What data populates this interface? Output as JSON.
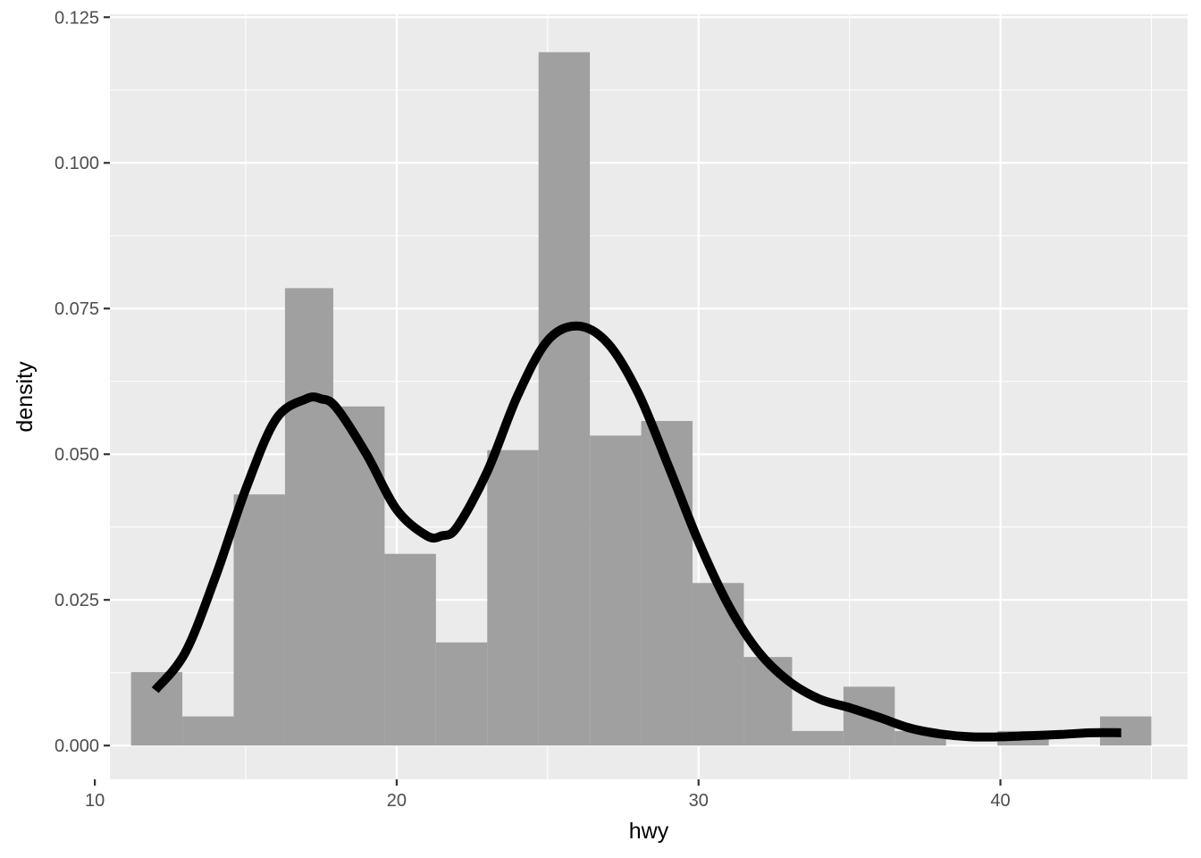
{
  "chart_data": {
    "type": "bar",
    "subtype": "histogram-with-density",
    "xlabel": "hwy",
    "ylabel": "density",
    "xlim": [
      10.5,
      46.2
    ],
    "ylim": [
      -0.0058,
      0.1255
    ],
    "x_ticks": [
      10,
      20,
      30,
      40
    ],
    "y_ticks": [
      0.0,
      0.025,
      0.05,
      0.075,
      0.1,
      0.125
    ],
    "y_tick_labels": [
      "0.000",
      "0.025",
      "0.050",
      "0.075",
      "0.100",
      "0.125"
    ],
    "grid": true,
    "histogram": {
      "fill_color": "#a0a0a0",
      "bins": [
        {
          "x0": 11.2,
          "x1": 12.9,
          "y": 0.0126
        },
        {
          "x0": 12.9,
          "x1": 14.6,
          "y": 0.005
        },
        {
          "x0": 14.6,
          "x1": 16.3,
          "y": 0.0431
        },
        {
          "x0": 16.3,
          "x1": 17.9,
          "y": 0.0785
        },
        {
          "x0": 17.9,
          "x1": 19.6,
          "y": 0.0582
        },
        {
          "x0": 19.6,
          "x1": 21.3,
          "y": 0.0329
        },
        {
          "x0": 21.3,
          "x1": 23.0,
          "y": 0.0177
        },
        {
          "x0": 23.0,
          "x1": 24.7,
          "y": 0.0507
        },
        {
          "x0": 24.7,
          "x1": 26.4,
          "y": 0.119
        },
        {
          "x0": 26.4,
          "x1": 28.1,
          "y": 0.0532
        },
        {
          "x0": 28.1,
          "x1": 29.8,
          "y": 0.0557
        },
        {
          "x0": 29.8,
          "x1": 31.5,
          "y": 0.0279
        },
        {
          "x0": 31.5,
          "x1": 33.1,
          "y": 0.0152
        },
        {
          "x0": 33.1,
          "x1": 34.8,
          "y": 0.0025
        },
        {
          "x0": 34.8,
          "x1": 36.5,
          "y": 0.0101
        },
        {
          "x0": 36.5,
          "x1": 38.2,
          "y": 0.0025
        },
        {
          "x0": 38.2,
          "x1": 39.9,
          "y": 0.0
        },
        {
          "x0": 39.9,
          "x1": 41.6,
          "y": 0.0025
        },
        {
          "x0": 41.6,
          "x1": 43.3,
          "y": 0.0
        },
        {
          "x0": 43.3,
          "x1": 45.0,
          "y": 0.005
        }
      ]
    },
    "density_curve": {
      "color": "#000000",
      "x": [
        12.0,
        13.0,
        14.0,
        15.0,
        16.0,
        17.0,
        17.5,
        18.0,
        19.0,
        20.0,
        21.0,
        21.5,
        22.0,
        23.0,
        24.0,
        25.0,
        26.0,
        27.0,
        28.0,
        29.0,
        30.0,
        31.0,
        32.0,
        33.0,
        34.0,
        35.0,
        36.0,
        37.0,
        38.0,
        39.0,
        40.0,
        41.0,
        42.0,
        43.0,
        44.0
      ],
      "y": [
        0.0095,
        0.016,
        0.029,
        0.044,
        0.056,
        0.0595,
        0.0595,
        0.058,
        0.05,
        0.0405,
        0.036,
        0.036,
        0.0375,
        0.047,
        0.06,
        0.0695,
        0.072,
        0.069,
        0.0605,
        0.048,
        0.035,
        0.024,
        0.016,
        0.011,
        0.008,
        0.0065,
        0.0048,
        0.003,
        0.002,
        0.0015,
        0.0015,
        0.0017,
        0.0019,
        0.0022,
        0.0022
      ]
    }
  }
}
